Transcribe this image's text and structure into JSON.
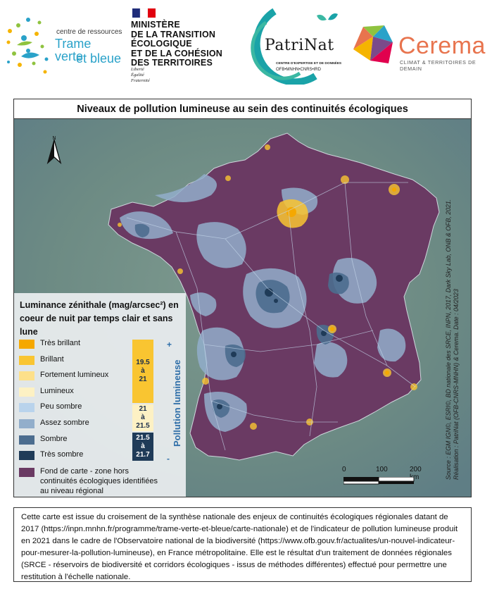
{
  "logos": {
    "tvb": {
      "line1": "centre de ressources",
      "line2": "Trame verte",
      "line3": "et bleue"
    },
    "ministere": {
      "lines": [
        "MINISTÈRE",
        "DE LA TRANSITION",
        "ÉCOLOGIQUE",
        "ET DE LA COHÉSION",
        "DES TERRITOIRES"
      ],
      "motto": [
        "Liberté",
        "Égalité",
        "Fraternité"
      ]
    },
    "patrinat": {
      "name": "PatriNat",
      "sub1": "CENTRE D'EXPERTISE ET DE DONNÉES",
      "sub2": "OFB•MNHN•CNRS•IRD"
    },
    "cerema": {
      "name": "Cerema",
      "sub": "CLIMAT & TERRITOIRES DE DEMAIN"
    }
  },
  "map": {
    "title": "Niveaux de pollution lumineuse au sein des continuités écologiques",
    "north_label": "N",
    "legend": {
      "title": "Luminance zénithale (mag/arcsec²) en coeur de nuit par temps clair et sans lune",
      "classes": [
        {
          "label": "Très brillant",
          "color": "#f5a800"
        },
        {
          "label": "Brillant",
          "color": "#f9c531"
        },
        {
          "label": "Fortement lumineux",
          "color": "#fde08a"
        },
        {
          "label": "Lumineux",
          "color": "#fdf1c4"
        },
        {
          "label": "Peu sombre",
          "color": "#b9d3ec"
        },
        {
          "label": "Assez sombre",
          "color": "#92aecb"
        },
        {
          "label": "Sombre",
          "color": "#4c6d8f"
        },
        {
          "label": "Très sombre",
          "color": "#1f3b58"
        }
      ],
      "bands": [
        {
          "text": "19.5 à 21",
          "color": "#f9c531",
          "text_color": "#1a2d4a"
        },
        {
          "text": "21 à 21.5",
          "color": "#fdf1c4",
          "text_color": "#1a2d4a"
        },
        {
          "text": "21.5 à 21.7",
          "color": "#1f3b58",
          "text_color": "#ffffff"
        }
      ],
      "pollution_label": "Pollution lumineuse",
      "plus": "+",
      "minus": "-",
      "background": {
        "label": "Fond de carte - zone hors continuités écologiques identifiées au niveau régional",
        "color": "#6a3a63"
      }
    },
    "scale": {
      "labels": [
        "0",
        "100",
        "200 km"
      ]
    },
    "source": {
      "line1": "Source : EGM IGN©, ESRI©, BD nationale des SRCE, INPN, 2017, Dark Sky Lab, ONB & OFB, 2021.",
      "line2": "Réalisation : PatriNat (OFB-CNRS-MNHN) & Cerema. Date : 04/2023"
    }
  },
  "caption": "Cette carte est issue du croisement de la synthèse nationale des enjeux de continuités écologiques régionales datant de 2017 (https://inpn.mnhn.fr/programme/trame-verte-et-bleue/carte-nationale) et de l'indicateur de pollution lumineuse produit en 2021 dans le cadre de l'Observatoire national de la biodiversité (https://www.ofb.gouv.fr/actualites/un-nouvel-indicateur-pour-mesurer-la-pollution-lumineuse), en France métropolitaine. Elle est le résultat d'un traitement de données régionales (SRCE - réservoirs de biodiversité et corridors écologiques - issus de méthodes différentes) effectué pour permettre une restitution à l'échelle nationale."
}
